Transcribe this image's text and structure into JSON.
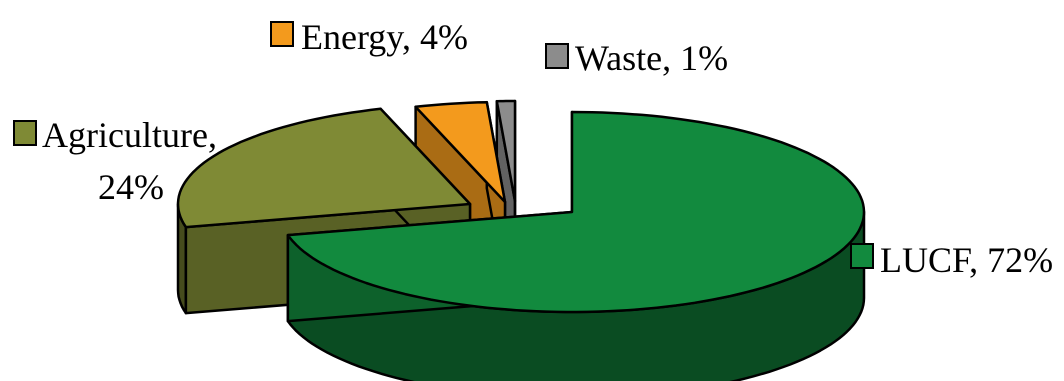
{
  "chart_data": {
    "type": "pie",
    "style": "3d-exploded",
    "title": "",
    "slices": [
      {
        "key": "lucf",
        "label": "LUCF, 72%",
        "name": "LUCF",
        "value": 72,
        "color": "#128a3e"
      },
      {
        "key": "agriculture",
        "label": "Agriculture, 24%",
        "name": "Agriculture",
        "value": 24,
        "color": "#7f8a35"
      },
      {
        "key": "energy",
        "label": "Energy, 4%",
        "name": "Energy",
        "value": 4,
        "color": "#f39a1d"
      },
      {
        "key": "waste",
        "label": "Waste, 1%",
        "name": "Waste",
        "value": 1,
        "color": "#8c8c8c"
      }
    ],
    "agriculture_label_lines": [
      "Agriculture,",
      "24%"
    ]
  }
}
